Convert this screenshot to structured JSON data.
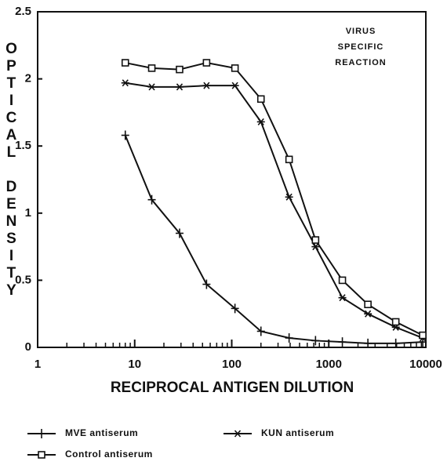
{
  "chart_data": {
    "type": "line",
    "xlabel": "RECIPROCAL ANTIGEN DILUTION",
    "ylabel": "OPTICAL DENSITY",
    "annotation": [
      "VIRUS",
      "SPECIFIC",
      "REACTION"
    ],
    "x": [
      8,
      15,
      29,
      55,
      108,
      200,
      390,
      730,
      1380,
      2530,
      4900,
      9300
    ],
    "log_x": true,
    "xlim": [
      1,
      10000
    ],
    "xticks": [
      1,
      10,
      100,
      1000,
      10000
    ],
    "ylim": [
      0,
      2.5
    ],
    "yticks": [
      0,
      0.5,
      1,
      1.5,
      2,
      2.5
    ],
    "series": [
      {
        "name": "MVE antiserum",
        "color": "#111111",
        "marker": "plus",
        "values": [
          1.58,
          1.1,
          0.85,
          0.47,
          0.29,
          0.12,
          0.07,
          0.05,
          0.04,
          0.03,
          0.03,
          0.04
        ]
      },
      {
        "name": "KUN antiserum",
        "color": "#111111",
        "marker": "star",
        "values": [
          1.97,
          1.94,
          1.94,
          1.95,
          1.95,
          1.68,
          1.12,
          0.75,
          0.37,
          0.25,
          0.15,
          0.07
        ]
      },
      {
        "name": "Control antiserum",
        "color": "#111111",
        "marker": "square",
        "values": [
          2.12,
          2.08,
          2.07,
          2.12,
          2.08,
          1.85,
          1.4,
          0.8,
          0.5,
          0.32,
          0.19,
          0.09
        ]
      }
    ]
  }
}
